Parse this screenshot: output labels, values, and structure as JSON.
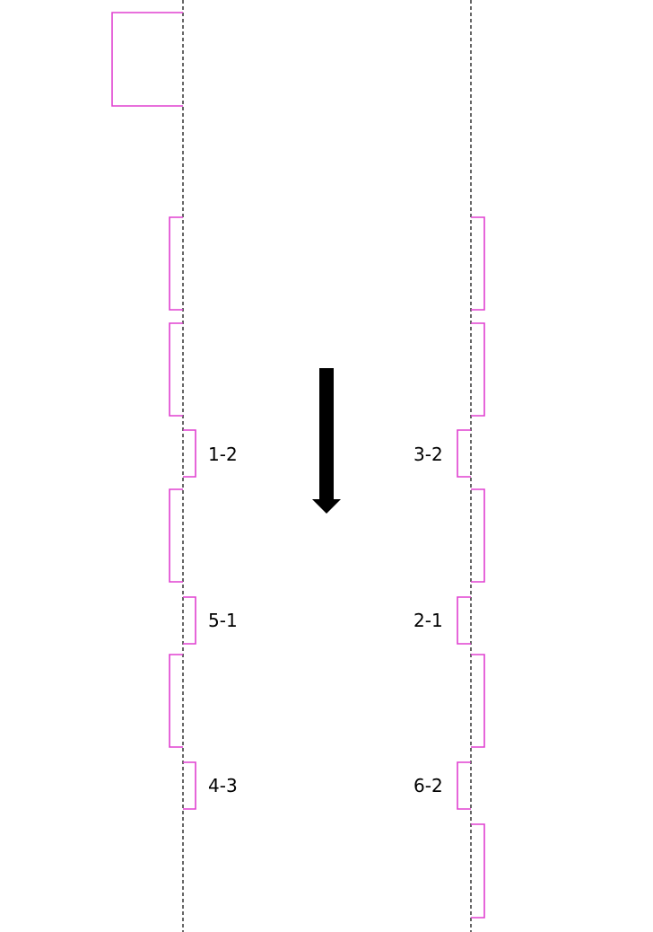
{
  "colors": {
    "bay_outline": "#e040d0",
    "lane_line": "#000000",
    "arrow": "#000000"
  },
  "direction_arrow": {
    "icon": "arrow-down-icon"
  },
  "left_side": {
    "labels": [
      "1-2",
      "5-1",
      "4-3"
    ]
  },
  "right_side": {
    "labels": [
      "3-2",
      "2-1",
      "6-2"
    ]
  }
}
